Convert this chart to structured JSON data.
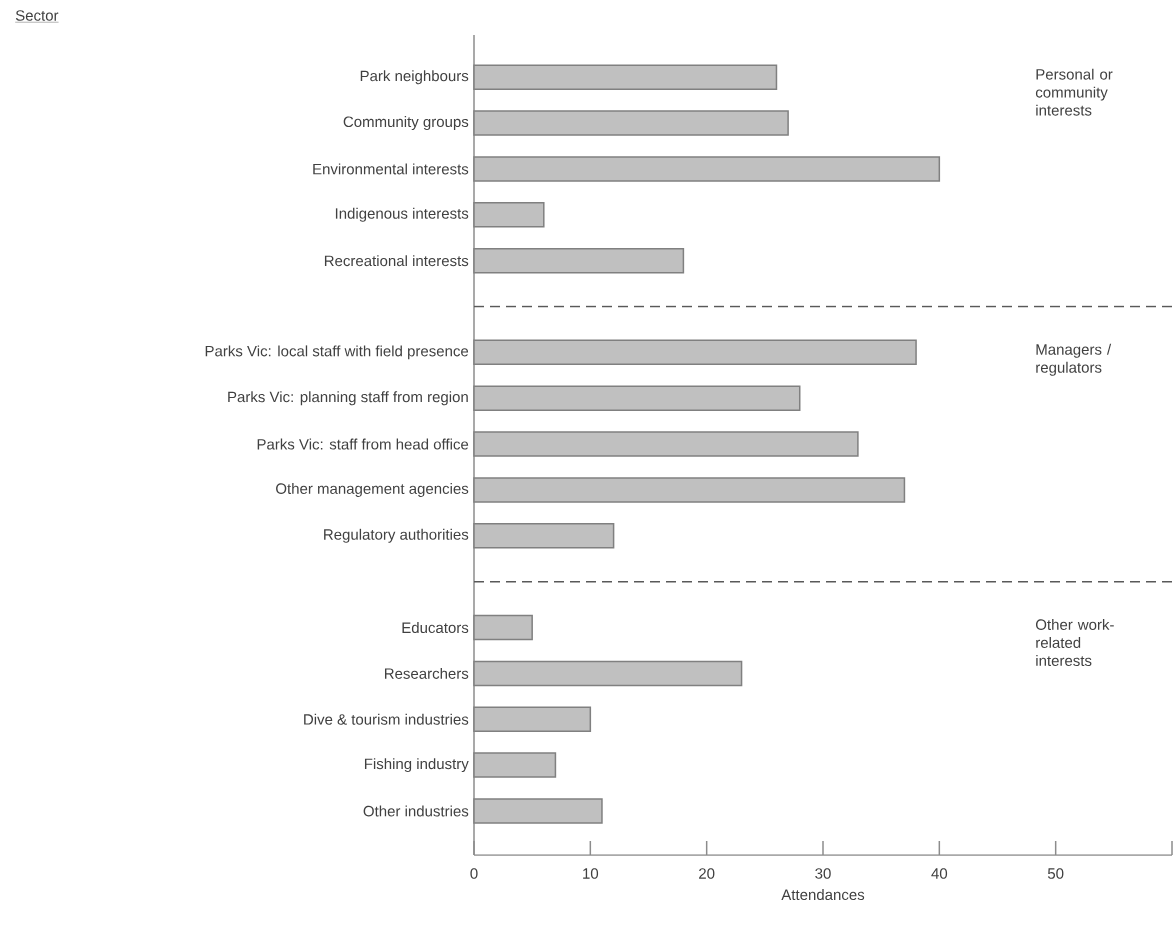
{
  "chart_data": {
    "type": "bar",
    "orientation": "horizontal",
    "xlabel": "Attendances",
    "categories": [
      "Park neighbours",
      "Community groups",
      "Environmental interests",
      "Indigenous interests",
      "Recreational interests",
      null,
      "Parks Vic: local staff with field presence",
      "Parks Vic: planning staff from region",
      "Parks Vic: staff from head office",
      "Other management agencies",
      "Regulatory authorities",
      null,
      "Educators",
      "Researchers",
      "Dive & tourism industries",
      "Fishing industry",
      "Other industries"
    ],
    "values": [
      26,
      27,
      40,
      6,
      18,
      null,
      38,
      28,
      33,
      37,
      12,
      null,
      5,
      23,
      10,
      7,
      11
    ],
    "color": "#c0c0c0",
    "xlim": [
      0,
      60
    ],
    "xticks": [
      0,
      10,
      20,
      30,
      40,
      50,
      {
        "value": 60,
        "label": null
      }
    ],
    "annotations": [
      "Sector",
      "Personal or community interests",
      "Managers / regulators",
      "Other work-related interests"
    ]
  }
}
